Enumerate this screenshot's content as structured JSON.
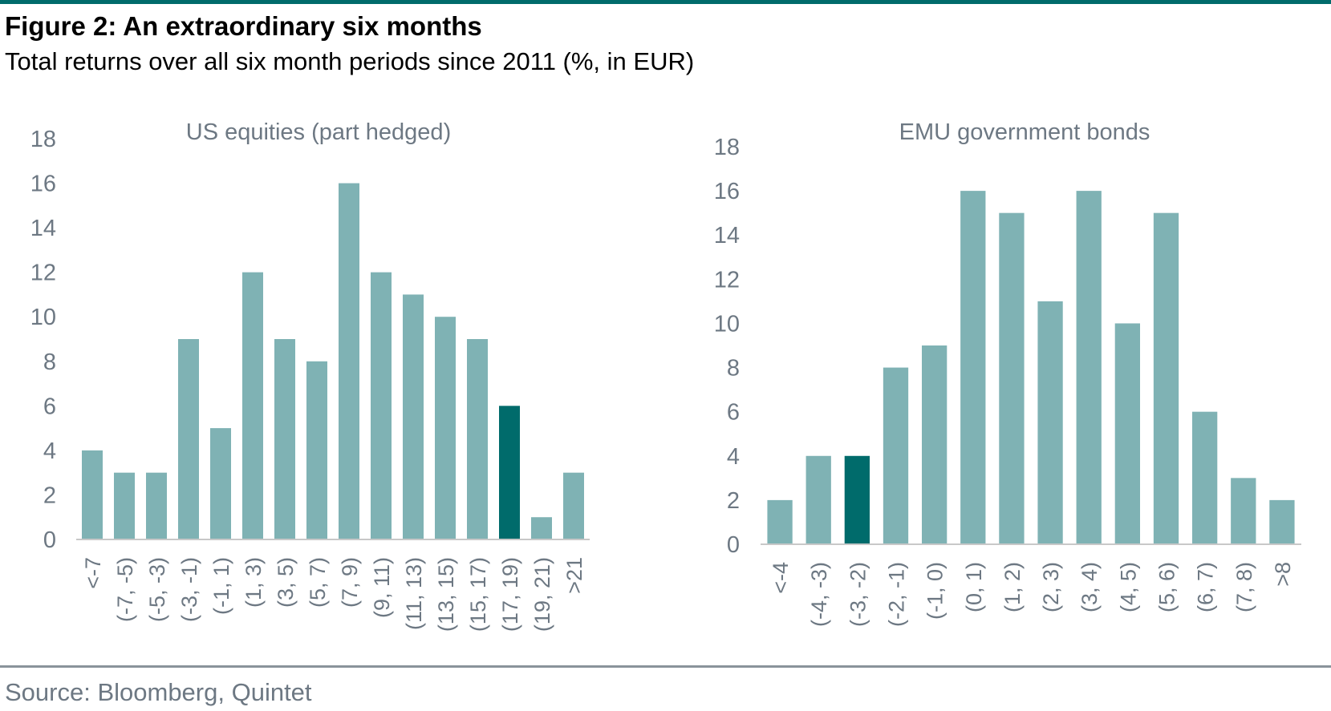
{
  "figure": {
    "title": "Figure 2: An extraordinary six months",
    "subtitle": "Total returns over all six month periods since 2011 (%, in EUR)",
    "source": "Source: Bloomberg, Quintet"
  },
  "colors": {
    "bar": "#7fb2b4",
    "highlight": "#006b6b",
    "axis_text": "#6d7883",
    "axis_line": "#c8c8c8",
    "rule_top": "#006b6b",
    "rule_bottom": "#8a939b"
  },
  "chart_data": [
    {
      "type": "bar",
      "title": "US equities (part hedged)",
      "xlabel": "",
      "ylabel": "",
      "ylim": [
        0,
        18
      ],
      "yticks": [
        "0",
        "2",
        "4",
        "6",
        "8",
        "10",
        "12",
        "14",
        "16",
        "18"
      ],
      "categories": [
        "<-7",
        "(-7, -5)",
        "(-5, -3)",
        "(-3, -1)",
        "(-1, 1)",
        "(1, 3)",
        "(3, 5)",
        "(5, 7)",
        "(7, 9)",
        "(9, 11)",
        "(11, 13)",
        "(13, 15)",
        "(15, 17)",
        "(17, 19)",
        "(19, 21)",
        ">21"
      ],
      "values": [
        4,
        3,
        3,
        9,
        5,
        12,
        9,
        8,
        16,
        12,
        11,
        10,
        9,
        6,
        1,
        3
      ],
      "highlight_category": "(17, 19)",
      "grid": false,
      "legend": "none"
    },
    {
      "type": "bar",
      "title": "EMU government bonds",
      "xlabel": "",
      "ylabel": "",
      "ylim": [
        0,
        18
      ],
      "yticks": [
        "0",
        "2",
        "4",
        "6",
        "8",
        "10",
        "12",
        "14",
        "16",
        "18"
      ],
      "categories": [
        "<-4",
        "(-4, -3)",
        "(-3, -2)",
        "(-2, -1)",
        "(-1, 0)",
        "(0, 1)",
        "(1, 2)",
        "(2, 3)",
        "(3, 4)",
        "(4, 5)",
        "(5, 6)",
        "(6, 7)",
        "(7, 8)",
        ">8"
      ],
      "values": [
        2,
        4,
        4,
        8,
        9,
        16,
        15,
        11,
        16,
        10,
        15,
        6,
        3,
        2
      ],
      "highlight_category": "(-3, -2)",
      "grid": false,
      "legend": "none"
    }
  ]
}
